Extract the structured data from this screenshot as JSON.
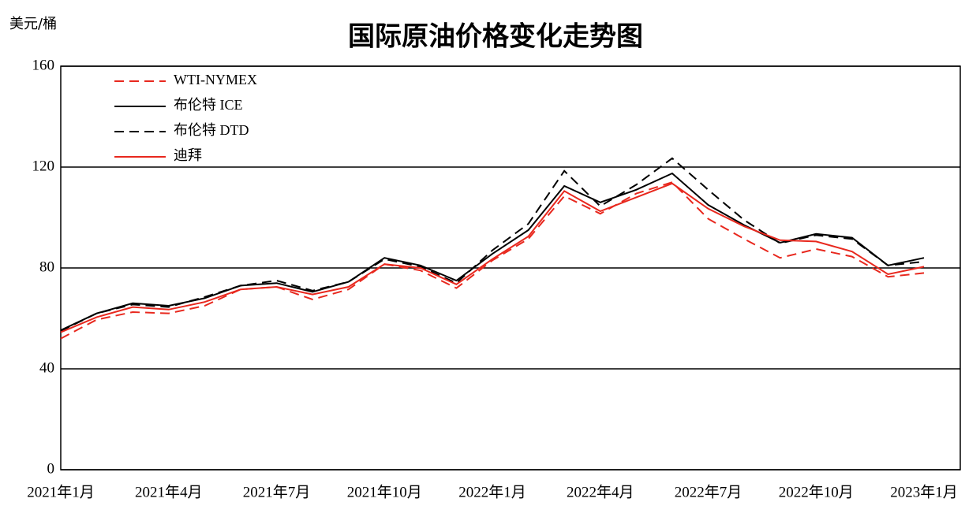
{
  "chart_data": {
    "type": "line",
    "title": "国际原油价格变化走势图",
    "y_label": "美元/桶",
    "categories": [
      "2021年1月",
      null,
      null,
      "2021年4月",
      null,
      null,
      "2021年7月",
      null,
      null,
      "2021年10月",
      null,
      null,
      "2022年1月",
      null,
      null,
      "2022年4月",
      null,
      null,
      "2022年7月",
      null,
      null,
      "2022年10月",
      null,
      null,
      "2023年1月"
    ],
    "series": [
      {
        "name": "WTI-NYMEX",
        "color": "#e8281e",
        "dashed": true,
        "values": [
          52,
          59.5,
          62.5,
          62,
          65,
          71.5,
          72.5,
          67.5,
          71.5,
          81.5,
          79,
          72,
          83,
          91.5,
          108.5,
          101.5,
          109.5,
          114,
          99.5,
          91.5,
          84,
          87.5,
          84.5,
          76.5,
          78
        ]
      },
      {
        "name": "布伦特 ICE",
        "color": "#000000",
        "dashed": false,
        "values": [
          55.3,
          62,
          66,
          65,
          68,
          73,
          74,
          70.5,
          74.5,
          84,
          81,
          75,
          85.6,
          95,
          112.5,
          106,
          111,
          117.5,
          105,
          97,
          90,
          93.5,
          92,
          81,
          84
        ]
      },
      {
        "name": "布伦特 DTD",
        "color": "#000000",
        "dashed": true,
        "values": [
          55,
          62,
          65.5,
          64.5,
          68.5,
          73,
          75,
          71,
          74.5,
          83.5,
          80.5,
          74,
          87,
          97.5,
          118.5,
          104.5,
          113,
          123.5,
          111,
          99,
          89.8,
          93,
          91.5,
          81,
          82.5
        ]
      },
      {
        "name": "迪拜",
        "color": "#e8281e",
        "dashed": false,
        "values": [
          54.5,
          60.5,
          64.5,
          63.5,
          66.5,
          71.5,
          72.5,
          69.5,
          72.5,
          81.5,
          80,
          73.5,
          83.5,
          92.5,
          110.5,
          102.5,
          108,
          113.5,
          103.5,
          96.5,
          91,
          90.5,
          86.5,
          77.5,
          80.5
        ]
      }
    ],
    "ylim": [
      0,
      160
    ],
    "yticks": [
      0,
      40,
      80,
      120,
      160
    ],
    "grid": true,
    "legend": "upper-left"
  }
}
